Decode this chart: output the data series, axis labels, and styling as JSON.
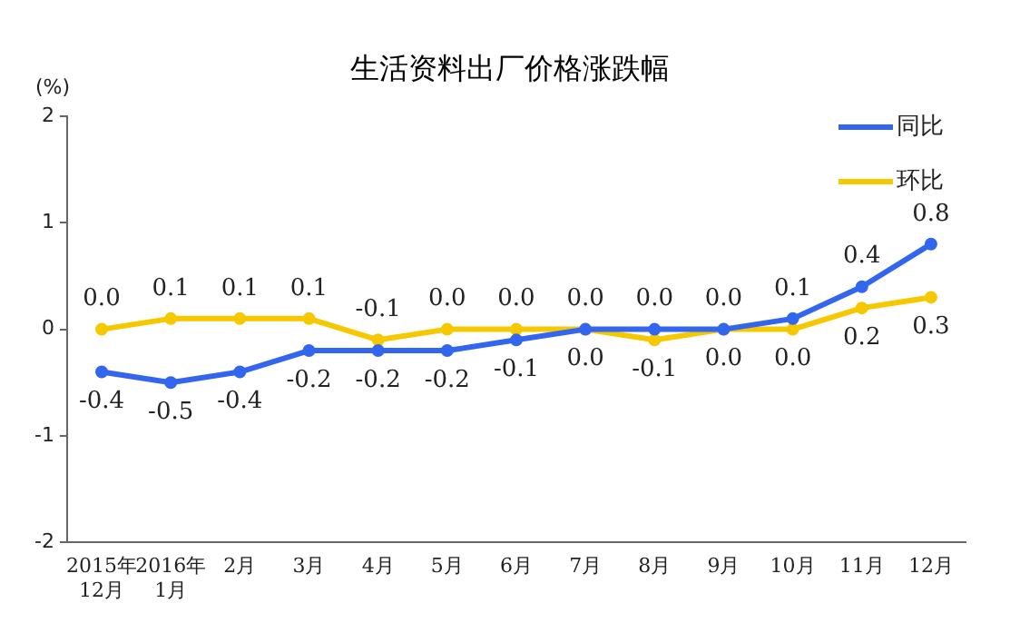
{
  "chart_data": {
    "type": "line",
    "title": "生活资料出厂价格涨跌幅",
    "ylabel": "(%)",
    "categories": [
      "2015年12月",
      "2016年1月",
      "2月",
      "3月",
      "4月",
      "5月",
      "6月",
      "7月",
      "8月",
      "9月",
      "10月",
      "11月",
      "12月"
    ],
    "series": [
      {
        "name": "同比",
        "color": "#3366ee",
        "values": [
          -0.4,
          -0.5,
          -0.4,
          -0.2,
          -0.2,
          -0.2,
          -0.1,
          0.0,
          0.0,
          0.0,
          0.1,
          0.4,
          0.8
        ],
        "value_labels": [
          "-0.4",
          "-0.5",
          "-0.4",
          "-0.2",
          "-0.2",
          "-0.2",
          "-0.1",
          "0.0",
          "0.0",
          "0.0",
          "0.1",
          "0.4",
          "0.8"
        ]
      },
      {
        "name": "环比",
        "color": "#f5c800",
        "values": [
          0.0,
          0.1,
          0.1,
          0.1,
          -0.1,
          0.0,
          0.0,
          0.0,
          -0.1,
          0.0,
          0.0,
          0.2,
          0.3
        ],
        "value_labels": [
          "0.0",
          "0.1",
          "0.1",
          "0.1",
          "-0.1",
          "0.0",
          "0.0",
          "0.0",
          "-0.1",
          "0.0",
          "0.0",
          "0.2",
          "0.3"
        ]
      }
    ],
    "ylim": [
      -2,
      2
    ],
    "yticks": [
      -2,
      -1,
      0,
      1,
      2
    ],
    "grid": false,
    "legend": "top right",
    "marker": "circle",
    "line_style": "solid"
  }
}
